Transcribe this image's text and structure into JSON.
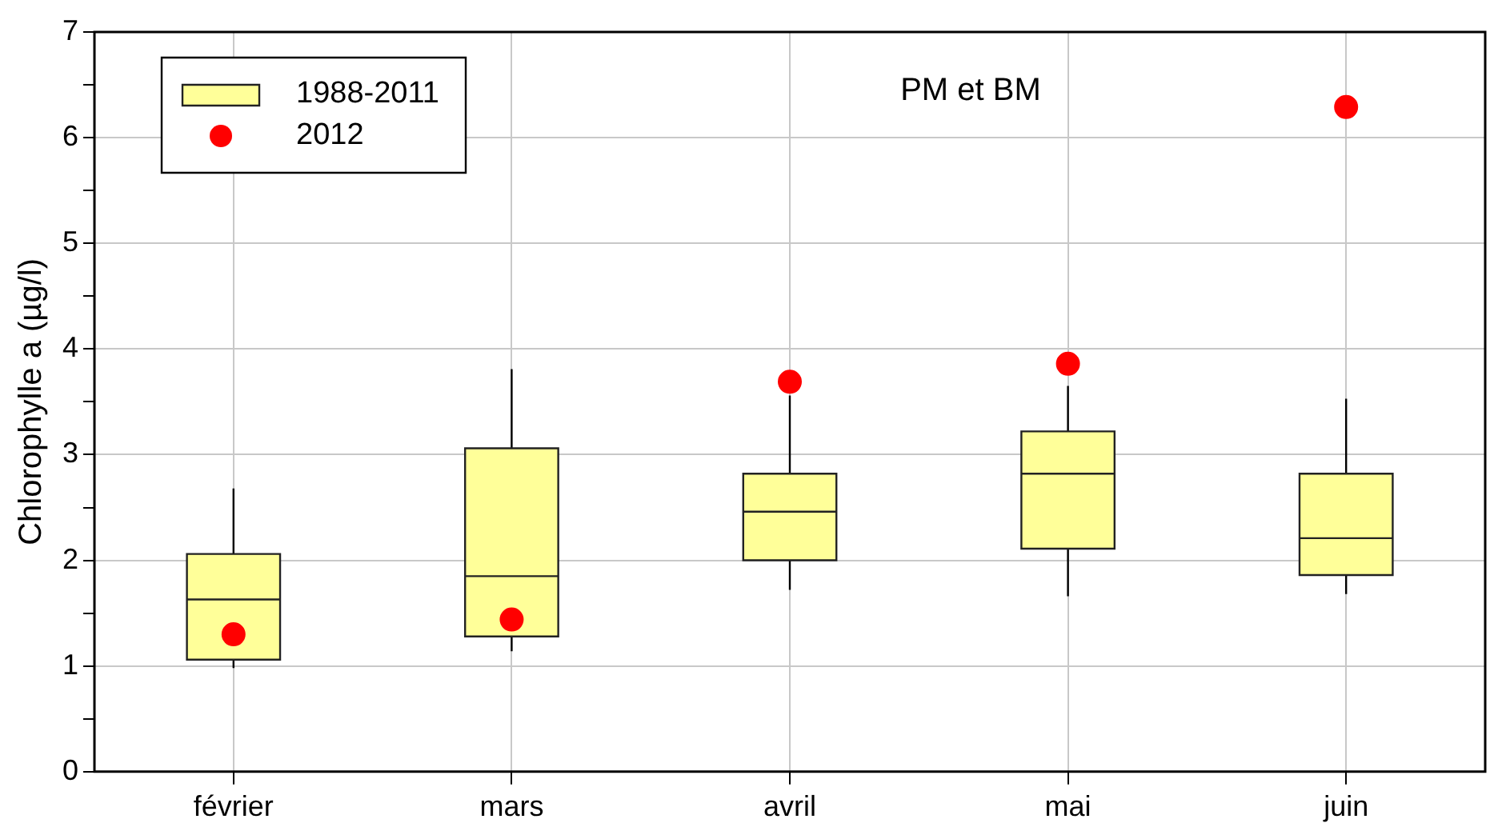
{
  "chart_data": {
    "type": "box",
    "ylabel": "Chlorophylle a (µg/l)",
    "annotations": [
      "PM et BM"
    ],
    "categories": [
      "février",
      "mars",
      "avril",
      "mai",
      "juin"
    ],
    "ylim": [
      0,
      7
    ],
    "yticks": [
      0,
      {
        "value": 0.5,
        "label": null
      },
      1,
      {
        "value": 1.5,
        "label": null
      },
      2,
      {
        "value": 2.5,
        "label": null
      },
      3,
      {
        "value": 3.5,
        "label": null
      },
      4,
      {
        "value": 4.5,
        "label": null
      },
      5,
      {
        "value": 5.5,
        "label": null
      },
      6,
      {
        "value": 6.5,
        "label": null
      },
      7
    ],
    "grid": true,
    "legend": "top left",
    "series": [
      {
        "name": "1988-2011",
        "color": "#ffff99",
        "boxes": [
          {
            "low": 0.98,
            "q1": 1.06,
            "median": 1.63,
            "q3": 2.06,
            "high": 2.68
          },
          {
            "low": 1.14,
            "q1": 1.28,
            "median": 1.85,
            "q3": 3.06,
            "high": 3.81
          },
          {
            "low": 1.72,
            "q1": 2.0,
            "median": 2.46,
            "q3": 2.82,
            "high": 3.56
          },
          {
            "low": 1.66,
            "q1": 2.11,
            "median": 2.82,
            "q3": 3.22,
            "high": 3.65
          },
          {
            "low": 1.68,
            "q1": 1.86,
            "median": 2.21,
            "q3": 2.82,
            "high": 3.53
          }
        ]
      },
      {
        "name": "2012",
        "type": "scatter",
        "color": "#ff0000",
        "marker": "circle",
        "x": [
          "février",
          "mars",
          "avril",
          "mai",
          "juin"
        ],
        "values": [
          1.3,
          1.44,
          3.69,
          3.86,
          6.29
        ]
      }
    ]
  }
}
